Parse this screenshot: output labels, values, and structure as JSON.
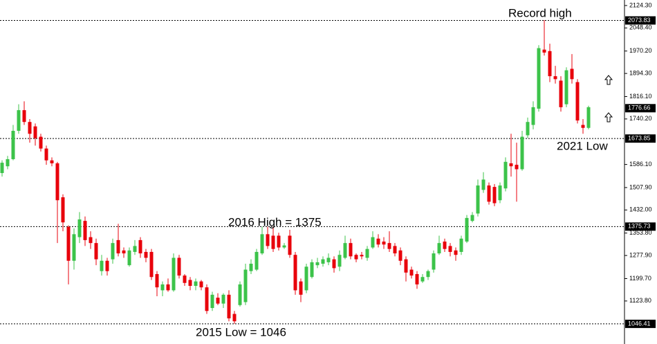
{
  "chart_data": {
    "type": "candlestick",
    "up_color": "#3cc34a",
    "down_color": "#e8000b",
    "ylim": [
      1018,
      2143
    ],
    "yticks": [
      {
        "value": 2124.3,
        "label": "2124.30"
      },
      {
        "value": 2048.4,
        "label": "2048.40"
      },
      {
        "value": 1970.2,
        "label": "1970.20"
      },
      {
        "value": 1894.3,
        "label": "1894.30"
      },
      {
        "value": 1816.1,
        "label": "1816.10"
      },
      {
        "value": 1740.2,
        "label": "1740.20"
      },
      {
        "value": 1586.1,
        "label": "1586.10"
      },
      {
        "value": 1507.9,
        "label": "1507.90"
      },
      {
        "value": 1432,
        "label": "1432.00"
      },
      {
        "value": 1353.8,
        "label": "1353.80"
      },
      {
        "value": 1277.9,
        "label": "1277.90"
      },
      {
        "value": 1199.7,
        "label": "1199.70"
      },
      {
        "value": 1123.8,
        "label": "1123.80"
      }
    ],
    "levels": [
      {
        "value": 2073.83,
        "label": "2073.83"
      },
      {
        "value": 1673.85,
        "label": "1673.85"
      },
      {
        "value": 1375.73,
        "label": "1375.73"
      },
      {
        "value": 1046.41,
        "label": "1046.41"
      }
    ],
    "current_price": {
      "value": 1776.66,
      "label": "1776.66"
    },
    "annotations": [
      "Record high",
      "2021 Low",
      "2016 High = 1375",
      "2015 Low = 1046"
    ],
    "ohlc": [
      [
        1557,
        1600,
        1545,
        1592
      ],
      [
        1580,
        1615,
        1570,
        1604
      ],
      [
        1604,
        1720,
        1600,
        1700
      ],
      [
        1700,
        1790,
        1690,
        1770
      ],
      [
        1770,
        1800,
        1720,
        1730
      ],
      [
        1730,
        1740,
        1660,
        1690
      ],
      [
        1715,
        1725,
        1650,
        1675
      ],
      [
        1680,
        1690,
        1630,
        1640
      ],
      [
        1640,
        1650,
        1585,
        1600
      ],
      [
        1600,
        1610,
        1580,
        1590
      ],
      [
        1590,
        1595,
        1320,
        1465
      ],
      [
        1475,
        1485,
        1360,
        1390
      ],
      [
        1375,
        1380,
        1180,
        1260
      ],
      [
        1260,
        1370,
        1230,
        1350
      ],
      [
        1340,
        1425,
        1320,
        1400
      ],
      [
        1395,
        1410,
        1310,
        1330
      ],
      [
        1340,
        1360,
        1300,
        1320
      ],
      [
        1320,
        1335,
        1245,
        1265
      ],
      [
        1225,
        1280,
        1210,
        1260
      ],
      [
        1260,
        1270,
        1210,
        1225
      ],
      [
        1265,
        1335,
        1250,
        1320
      ],
      [
        1330,
        1385,
        1275,
        1285
      ],
      [
        1295,
        1305,
        1270,
        1285
      ],
      [
        1245,
        1305,
        1240,
        1295
      ],
      [
        1290,
        1330,
        1280,
        1310
      ],
      [
        1330,
        1340,
        1270,
        1285
      ],
      [
        1290,
        1300,
        1255,
        1270
      ],
      [
        1290,
        1300,
        1195,
        1205
      ],
      [
        1215,
        1225,
        1140,
        1170
      ],
      [
        1160,
        1190,
        1140,
        1180
      ],
      [
        1180,
        1200,
        1155,
        1160
      ],
      [
        1160,
        1285,
        1155,
        1270
      ],
      [
        1270,
        1280,
        1200,
        1210
      ],
      [
        1210,
        1215,
        1175,
        1185
      ],
      [
        1195,
        1205,
        1160,
        1175
      ],
      [
        1175,
        1200,
        1160,
        1190
      ],
      [
        1190,
        1195,
        1160,
        1170
      ],
      [
        1170,
        1180,
        1080,
        1090
      ],
      [
        1100,
        1155,
        1090,
        1145
      ],
      [
        1135,
        1150,
        1110,
        1115
      ],
      [
        1115,
        1150,
        1100,
        1145
      ],
      [
        1145,
        1160,
        1055,
        1065
      ],
      [
        1080,
        1090,
        1046,
        1055
      ],
      [
        1110,
        1190,
        1105,
        1180
      ],
      [
        1120,
        1250,
        1110,
        1230
      ],
      [
        1225,
        1265,
        1215,
        1250
      ],
      [
        1230,
        1300,
        1225,
        1290
      ],
      [
        1285,
        1375,
        1280,
        1350
      ],
      [
        1350,
        1375,
        1300,
        1310
      ],
      [
        1345,
        1375,
        1290,
        1300
      ],
      [
        1345,
        1355,
        1295,
        1305
      ],
      [
        1305,
        1320,
        1300,
        1312
      ],
      [
        1345,
        1365,
        1270,
        1280
      ],
      [
        1280,
        1290,
        1145,
        1160
      ],
      [
        1190,
        1200,
        1120,
        1145
      ],
      [
        1160,
        1250,
        1150,
        1240
      ],
      [
        1205,
        1265,
        1200,
        1255
      ],
      [
        1245,
        1270,
        1235,
        1255
      ],
      [
        1250,
        1275,
        1240,
        1265
      ],
      [
        1255,
        1285,
        1245,
        1270
      ],
      [
        1265,
        1275,
        1220,
        1235
      ],
      [
        1240,
        1295,
        1225,
        1280
      ],
      [
        1270,
        1345,
        1265,
        1320
      ],
      [
        1320,
        1335,
        1265,
        1275
      ],
      [
        1280,
        1285,
        1255,
        1265
      ],
      [
        1280,
        1290,
        1265,
        1275
      ],
      [
        1270,
        1310,
        1260,
        1300
      ],
      [
        1305,
        1360,
        1300,
        1340
      ],
      [
        1335,
        1350,
        1305,
        1315
      ],
      [
        1325,
        1340,
        1300,
        1315
      ],
      [
        1320,
        1360,
        1290,
        1300
      ],
      [
        1310,
        1320,
        1275,
        1285
      ],
      [
        1295,
        1305,
        1245,
        1260
      ],
      [
        1265,
        1275,
        1190,
        1220
      ],
      [
        1230,
        1240,
        1200,
        1210
      ],
      [
        1215,
        1225,
        1165,
        1180
      ],
      [
        1190,
        1215,
        1185,
        1205
      ],
      [
        1205,
        1230,
        1195,
        1225
      ],
      [
        1230,
        1295,
        1220,
        1285
      ],
      [
        1285,
        1345,
        1280,
        1320
      ],
      [
        1325,
        1335,
        1290,
        1300
      ],
      [
        1310,
        1320,
        1275,
        1290
      ],
      [
        1295,
        1305,
        1260,
        1280
      ],
      [
        1290,
        1345,
        1280,
        1335
      ],
      [
        1325,
        1415,
        1320,
        1405
      ],
      [
        1395,
        1425,
        1390,
        1415
      ],
      [
        1420,
        1535,
        1410,
        1515
      ],
      [
        1500,
        1560,
        1490,
        1535
      ],
      [
        1515,
        1525,
        1450,
        1460
      ],
      [
        1510,
        1520,
        1445,
        1455
      ],
      [
        1465,
        1525,
        1455,
        1515
      ],
      [
        1505,
        1610,
        1495,
        1595
      ],
      [
        1590,
        1690,
        1545,
        1580
      ],
      [
        1585,
        1660,
        1460,
        1570
      ],
      [
        1570,
        1700,
        1565,
        1680
      ],
      [
        1685,
        1745,
        1675,
        1730
      ],
      [
        1720,
        1800,
        1705,
        1780
      ],
      [
        1775,
        1990,
        1765,
        1980
      ],
      [
        1975,
        2075,
        1955,
        1965
      ],
      [
        1970,
        1995,
        1865,
        1885
      ],
      [
        1885,
        1920,
        1860,
        1875
      ],
      [
        1870,
        1885,
        1765,
        1780
      ],
      [
        1790,
        1915,
        1780,
        1905
      ],
      [
        1910,
        1960,
        1860,
        1875
      ],
      [
        1865,
        1875,
        1725,
        1735
      ],
      [
        1720,
        1740,
        1690,
        1710
      ],
      [
        1710,
        1785,
        1705,
        1780
      ]
    ]
  }
}
